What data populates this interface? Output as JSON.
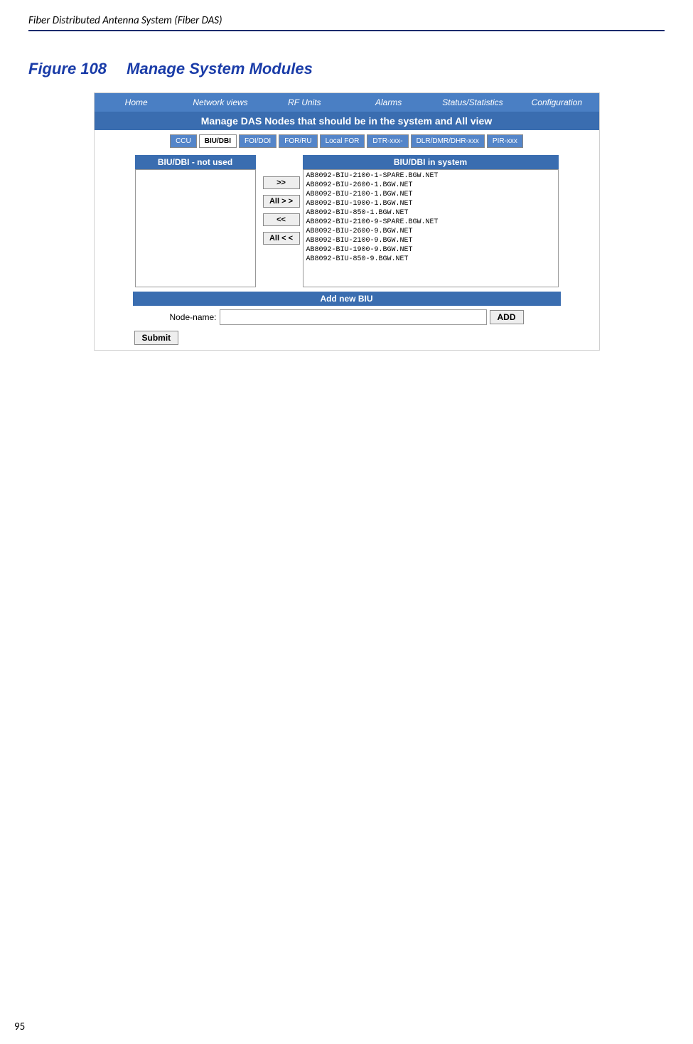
{
  "header_text": "Fiber Distributed Antenna System (Fiber DAS)",
  "figure_num": "Figure 108",
  "figure_title": "Manage System Modules",
  "page_number": "95",
  "nav": {
    "items": [
      "Home",
      "Network views",
      "RF Units",
      "Alarms",
      "Status/Statistics",
      "Configuration"
    ]
  },
  "title_bar": "Manage DAS Nodes that should be in the system and All view",
  "tabs": [
    "CCU",
    "BIU/DBI",
    "FOI/DOI",
    "FOR/RU",
    "Local FOR",
    "DTR-xxx-",
    "DLR/DMR/DHR-xxx",
    "PIR-xxx"
  ],
  "active_tab_index": 1,
  "left_panel_header": "BIU/DBI - not used",
  "right_panel_header": "BIU/DBI in system",
  "buttons": {
    "move_right": ">>",
    "move_all_right": "All > >",
    "move_left": "<<",
    "move_all_left": "All < <",
    "add": "ADD",
    "submit": "Submit"
  },
  "add_header": "Add new BIU",
  "node_label": "Node-name:",
  "system_items": [
    "AB8092-BIU-2100-1-SPARE.BGW.NET",
    "AB8092-BIU-2600-1.BGW.NET",
    "AB8092-BIU-2100-1.BGW.NET",
    "AB8092-BIU-1900-1.BGW.NET",
    "AB8092-BIU-850-1.BGW.NET",
    "AB8092-BIU-2100-9-SPARE.BGW.NET",
    "AB8092-BIU-2600-9.BGW.NET",
    "AB8092-BIU-2100-9.BGW.NET",
    "AB8092-BIU-1900-9.BGW.NET",
    "AB8092-BIU-850-9.BGW.NET"
  ]
}
